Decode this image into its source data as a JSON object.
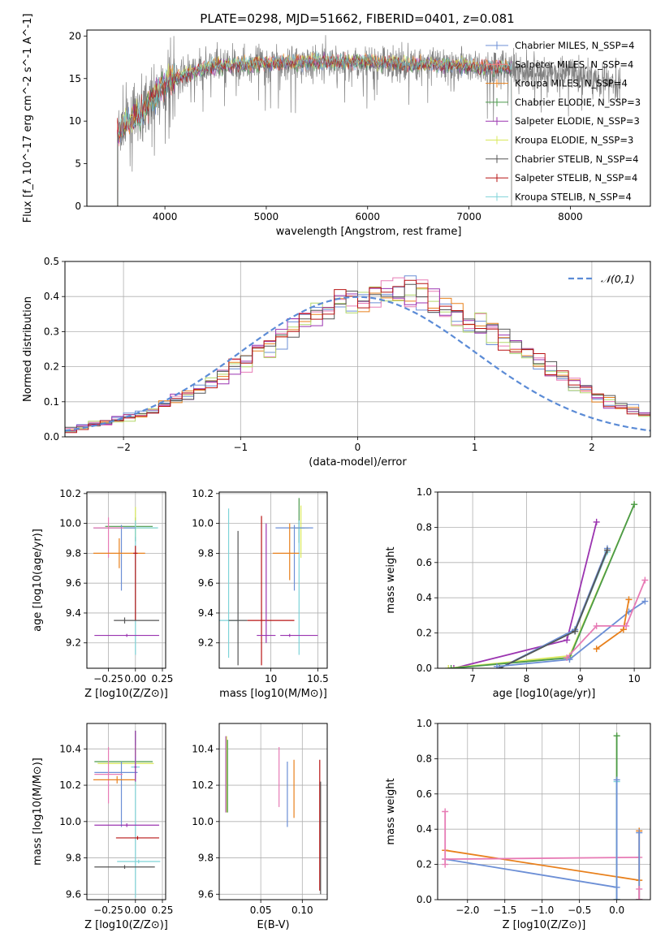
{
  "figure_title": "PLATE=0298, MJD=51662, FIBERID=0401, z=0.081",
  "colors": {
    "chabrier_miles": "#6c8fd6",
    "salpeter_miles": "#ff7b7b",
    "kroupa_miles": "#e8801c",
    "chabrier_elodie": "#4a9a4a",
    "salpeter_elodie": "#9b34b0",
    "kroupa_elodie": "#d8e85a",
    "chabrier_stelib": "#555555",
    "salpeter_stelib": "#b81414",
    "kroupa_stelib": "#7ed3d8",
    "pink": "#e77bb5",
    "gaussian": "#5b8bd6",
    "spectrum": "#808080"
  },
  "chart_data": [
    {
      "id": "spectrum",
      "type": "line",
      "title": "PLATE=0298, MJD=51662, FIBERID=0401, z=0.081",
      "xlabel": "wavelength [Angstrom, rest frame]",
      "ylabel": "Flux [f_λ 10^-17 erg cm^-2 s^-1 A^-1]",
      "xlim": [
        3230,
        8790
      ],
      "ylim": [
        0,
        20.7
      ],
      "xticks": [
        4000,
        5000,
        6000,
        7000,
        8000
      ],
      "yticks": [
        0,
        5,
        10,
        15,
        20
      ],
      "grid": false,
      "legend_position": "right",
      "legend": [
        {
          "name": "Chabrier MILES, N_SSP=4",
          "color": "#6c8fd6"
        },
        {
          "name": "Salpeter MILES, N_SSP=4",
          "color": "#ff7b7b"
        },
        {
          "name": "Kroupa MILES, N_SSP=4",
          "color": "#e8801c"
        },
        {
          "name": "Chabrier ELODIE, N_SSP=3",
          "color": "#4a9a4a"
        },
        {
          "name": "Salpeter ELODIE, N_SSP=3",
          "color": "#9b34b0"
        },
        {
          "name": "Kroupa ELODIE, N_SSP=3",
          "color": "#d8e85a"
        },
        {
          "name": "Chabrier STELIB, N_SSP=4",
          "color": "#555555"
        },
        {
          "name": "Salpeter STELIB, N_SSP=4",
          "color": "#b81414"
        },
        {
          "name": "Kroupa STELIB, N_SSP=4",
          "color": "#7ed3d8"
        }
      ],
      "data_envelope": {
        "x": [
          3530,
          3600,
          3700,
          3800,
          3900,
          4000,
          4200,
          4500,
          5000,
          5500,
          6000,
          6500,
          7000,
          7400,
          8000,
          8500
        ],
        "y": [
          8.5,
          9.5,
          10.5,
          11.5,
          13,
          14.5,
          15.5,
          16.5,
          16.8,
          17,
          16.9,
          16.7,
          16.5,
          16.2,
          15.5,
          14.5
        ]
      },
      "model_range": [
        3530,
        7420
      ]
    },
    {
      "id": "residual_hist",
      "type": "histogram",
      "xlabel": "(data-model)/error",
      "ylabel": "Normed distribution",
      "xlim": [
        -2.5,
        2.5
      ],
      "ylim": [
        0,
        0.5
      ],
      "xticks": [
        -2,
        -1,
        0,
        1,
        2
      ],
      "yticks": [
        0.0,
        0.1,
        0.2,
        0.3,
        0.4,
        0.5
      ],
      "grid": true,
      "legend_position": "top-right",
      "legend": [
        {
          "name": "𝒩(0,1)",
          "style": "dashed",
          "color": "#5b8bd6"
        }
      ],
      "bin_width": 0.1,
      "reference": [
        0.022,
        0.028,
        0.034,
        0.042,
        0.048,
        0.056,
        0.066,
        0.078,
        0.09,
        0.105,
        0.12,
        0.137,
        0.155,
        0.174,
        0.194,
        0.215,
        0.236,
        0.258,
        0.279,
        0.301,
        0.321,
        0.339,
        0.356,
        0.37,
        0.382,
        0.39,
        0.395,
        0.399,
        0.399,
        0.396,
        0.39,
        0.381,
        0.368,
        0.353,
        0.336,
        0.317,
        0.297,
        0.276,
        0.255,
        0.233,
        0.212,
        0.191,
        0.171,
        0.152,
        0.134,
        0.117,
        0.101,
        0.087,
        0.075,
        0.064
      ],
      "series_colors": [
        "#6c8fd6",
        "#e8801c",
        "#e77bb5",
        "#b3d86a",
        "#9b34b0",
        "#555555",
        "#b81414"
      ]
    },
    {
      "id": "age_vs_Z",
      "type": "errorbar",
      "xlabel": "Z [log10(Z/Z⊙)]",
      "ylabel": "age  [log10(age/yr)]",
      "xlim": [
        -0.45,
        0.28
      ],
      "ylim": [
        9.03,
        10.21
      ],
      "xticks": [
        -0.25,
        0.0,
        0.25
      ],
      "yticks": [
        9.2,
        9.4,
        9.6,
        9.8,
        10.0,
        10.2
      ],
      "grid": true,
      "points": [
        {
          "x": 0.0,
          "y": 9.98,
          "xerr": [
            0.28,
            0.16
          ],
          "yerr": [
            0.1,
            0.06
          ],
          "color": "#4a9a4a"
        },
        {
          "x": 0.0,
          "y": 9.97,
          "xerr": [
            0.38,
            0.2
          ],
          "yerr": [
            0.06,
            0.14
          ],
          "color": "#d8e85a"
        },
        {
          "x": 0.0,
          "y": 9.97,
          "xerr": [
            0.38,
            0.21
          ],
          "yerr": [
            0.85,
            0.05
          ],
          "color": "#7ed3d8"
        },
        {
          "x": -0.13,
          "y": 9.97,
          "xerr": [
            0.26,
            0.13
          ],
          "yerr": [
            0.42,
            0.02
          ],
          "color": "#6c8fd6"
        },
        {
          "x": -0.25,
          "y": 9.97,
          "xerr": [
            0.14,
            0.14
          ],
          "yerr": [
            0.2,
            0.07
          ],
          "color": "#e77bb5"
        },
        {
          "x": -0.15,
          "y": 9.8,
          "xerr": [
            0.24,
            0.24
          ],
          "yerr": [
            0.1,
            0.1
          ],
          "color": "#e8801c"
        },
        {
          "x": 0.0,
          "y": 9.8,
          "xerr": [
            0.02,
            0.02
          ],
          "yerr": [
            0.45,
            0.05
          ],
          "color": "#b81414"
        },
        {
          "x": -0.1,
          "y": 9.35,
          "xerr": [
            0.1,
            0.32
          ],
          "yerr": [
            0.02,
            0.02
          ],
          "color": "#555555"
        },
        {
          "x": -0.08,
          "y": 9.25,
          "xerr": [
            0.3,
            0.3
          ],
          "yerr": [
            0.01,
            0.01
          ],
          "color": "#9b34b0"
        }
      ]
    },
    {
      "id": "age_vs_mass",
      "type": "errorbar",
      "xlabel": "mass [log10(M/M⊙)]",
      "ylabel": "",
      "xlim": [
        9.45,
        10.6
      ],
      "ylim": [
        9.03,
        10.21
      ],
      "xticks": [
        10.0,
        10.5
      ],
      "yticks": [
        9.2,
        9.4,
        9.6,
        9.8,
        10.0,
        10.2
      ],
      "grid": true,
      "points": [
        {
          "x": 10.3,
          "y": 9.97,
          "xerr": [
            0.05,
            0.06
          ],
          "yerr": [
            0.1,
            0.2
          ],
          "color": "#4a9a4a"
        },
        {
          "x": 10.32,
          "y": 9.97,
          "xerr": [
            0.12,
            0.08
          ],
          "yerr": [
            0.2,
            0.15
          ],
          "color": "#d8e85a"
        },
        {
          "x": 10.3,
          "y": 9.97,
          "xerr": [
            0.05,
            0.05
          ],
          "yerr": [
            0.85,
            0.05
          ],
          "color": "#7ed3d8"
        },
        {
          "x": 10.25,
          "y": 9.97,
          "xerr": [
            0.2,
            0.2
          ],
          "yerr": [
            0.42,
            0.02
          ],
          "color": "#6c8fd6"
        },
        {
          "x": 10.2,
          "y": 9.8,
          "xerr": [
            0.18,
            0.1
          ],
          "yerr": [
            0.18,
            0.2
          ],
          "color": "#e8801c"
        },
        {
          "x": 9.55,
          "y": 9.35,
          "xerr": [
            0.1,
            0.12
          ],
          "yerr": [
            0.25,
            0.75
          ],
          "color": "#7ed3d8"
        },
        {
          "x": 9.65,
          "y": 9.35,
          "xerr": [
            0.1,
            0.1
          ],
          "yerr": [
            0.3,
            0.6
          ],
          "color": "#555555"
        },
        {
          "x": 9.9,
          "y": 9.35,
          "xerr": [
            0.15,
            0.35
          ],
          "yerr": [
            0.3,
            0.7
          ],
          "color": "#b81414"
        },
        {
          "x": 10.2,
          "y": 9.25,
          "xerr": [
            0.1,
            0.3
          ],
          "yerr": [
            0.01,
            0.01
          ],
          "color": "#9b34b0"
        },
        {
          "x": 9.95,
          "y": 9.25,
          "xerr": [
            0.1,
            0.1
          ],
          "yerr": [
            0.05,
            0.75
          ],
          "color": "#9b34b0"
        }
      ]
    },
    {
      "id": "weight_vs_age",
      "type": "line",
      "xlabel": "age  [log10(age/yr)]",
      "ylabel": "mass weight",
      "xlim": [
        6.35,
        10.3
      ],
      "ylim": [
        0,
        1.0
      ],
      "xticks": [
        7,
        8,
        9,
        10
      ],
      "yticks": [
        0.0,
        0.2,
        0.4,
        0.6,
        0.8,
        1.0
      ],
      "grid": true,
      "series": [
        {
          "color": "#9b34b0",
          "x": [
            6.65,
            8.75,
            9.3
          ],
          "y": [
            0.0,
            0.16,
            0.83
          ]
        },
        {
          "color": "#d8e85a",
          "x": [
            6.55,
            8.8,
            10.0
          ],
          "y": [
            0.0,
            0.07,
            0.93
          ]
        },
        {
          "color": "#4a9a4a",
          "x": [
            6.6,
            8.8,
            10.0
          ],
          "y": [
            0.0,
            0.06,
            0.93
          ]
        },
        {
          "color": "#7ed3d8",
          "x": [
            7.5,
            8.9,
            9.5
          ],
          "y": [
            0.0,
            0.21,
            0.66
          ]
        },
        {
          "color": "#6c8fd6",
          "x": [
            7.5,
            8.9,
            9.5
          ],
          "y": [
            0.0,
            0.22,
            0.68
          ]
        },
        {
          "color": "#555555",
          "x": [
            7.5,
            8.9,
            9.5
          ],
          "y": [
            0.0,
            0.21,
            0.67
          ]
        },
        {
          "color": "#6c8fd6",
          "x": [
            7.45,
            8.8,
            9.9,
            10.2
          ],
          "y": [
            0.01,
            0.05,
            0.32,
            0.38
          ]
        },
        {
          "color": "#e8801c",
          "x": [
            9.3,
            9.8,
            9.9
          ],
          "y": [
            0.11,
            0.22,
            0.39
          ]
        },
        {
          "color": "#e77bb5",
          "x": [
            8.75,
            9.3,
            9.85,
            10.2
          ],
          "y": [
            0.06,
            0.24,
            0.24,
            0.5
          ]
        }
      ]
    },
    {
      "id": "mass_vs_Z",
      "type": "errorbar",
      "xlabel": "Z [log10(Z/Z⊙)]",
      "ylabel": "mass [log10(M/M⊙)]",
      "xlim": [
        -0.45,
        0.28
      ],
      "ylim": [
        9.57,
        10.54
      ],
      "xticks": [
        -0.25,
        0.0,
        0.25
      ],
      "yticks": [
        9.6,
        9.8,
        10.0,
        10.2,
        10.4
      ],
      "grid": true,
      "points": [
        {
          "x": 0.0,
          "y": 10.33,
          "xerr": [
            0.38,
            0.16
          ],
          "yerr": [
            0.04,
            0.17
          ],
          "color": "#4a9a4a"
        },
        {
          "x": 0.0,
          "y": 10.32,
          "xerr": [
            0.35,
            0.17
          ],
          "yerr": [
            0.12,
            0.1
          ],
          "color": "#d8e85a"
        },
        {
          "x": 0.0,
          "y": 10.3,
          "xerr": [
            0.04,
            0.04
          ],
          "yerr": [
            0.72,
            0.06
          ],
          "color": "#7ed3d8"
        },
        {
          "x": -0.13,
          "y": 10.27,
          "xerr": [
            0.25,
            0.15
          ],
          "yerr": [
            0.3,
            0.06
          ],
          "color": "#6c8fd6"
        },
        {
          "x": -0.25,
          "y": 10.26,
          "xerr": [
            0.13,
            0.13
          ],
          "yerr": [
            0.16,
            0.15
          ],
          "color": "#e77bb5"
        },
        {
          "x": -0.17,
          "y": 10.23,
          "xerr": [
            0.22,
            0.17
          ],
          "yerr": [
            0.02,
            0.02
          ],
          "color": "#e8801c"
        },
        {
          "x": 0.0,
          "y": 10.3,
          "xerr": [
            0.01,
            0.01
          ],
          "yerr": [
            0.08,
            0.2
          ],
          "color": "#9b34b0"
        },
        {
          "x": -0.08,
          "y": 9.98,
          "xerr": [
            0.3,
            0.3
          ],
          "yerr": [
            0.01,
            0.01
          ],
          "color": "#9b34b0"
        },
        {
          "x": 0.02,
          "y": 9.91,
          "xerr": [
            0.2,
            0.2
          ],
          "yerr": [
            0.01,
            0.01
          ],
          "color": "#b81414"
        },
        {
          "x": 0.03,
          "y": 9.78,
          "xerr": [
            0.2,
            0.2
          ],
          "yerr": [
            0.01,
            0.01
          ],
          "color": "#7ed3d8"
        },
        {
          "x": -0.1,
          "y": 9.75,
          "xerr": [
            0.28,
            0.28
          ],
          "yerr": [
            0.01,
            0.01
          ],
          "color": "#555555"
        }
      ]
    },
    {
      "id": "mass_vs_ebv",
      "type": "errorbar",
      "xlabel": "E(B-V)",
      "ylabel": "",
      "xlim": [
        0.0,
        0.13
      ],
      "ylim": [
        9.57,
        10.54
      ],
      "xticks": [
        0.05,
        0.1
      ],
      "yticks": [
        9.6,
        9.8,
        10.0,
        10.2,
        10.4
      ],
      "grid": true,
      "points": [
        {
          "x": 0.008,
          "y": 10.25,
          "xerr": [
            0,
            0
          ],
          "yerr": [
            0.2,
            0.22
          ],
          "color": "#9b34b0"
        },
        {
          "x": 0.009,
          "y": 10.25,
          "xerr": [
            0,
            0
          ],
          "yerr": [
            0.2,
            0.22
          ],
          "color": "#d8e85a"
        },
        {
          "x": 0.01,
          "y": 10.25,
          "xerr": [
            0,
            0
          ],
          "yerr": [
            0.2,
            0.2
          ],
          "color": "#4a9a4a"
        },
        {
          "x": 0.072,
          "y": 10.25,
          "xerr": [
            0,
            0
          ],
          "yerr": [
            0.17,
            0.16
          ],
          "color": "#e77bb5"
        },
        {
          "x": 0.082,
          "y": 10.15,
          "xerr": [
            0,
            0
          ],
          "yerr": [
            0.18,
            0.18
          ],
          "color": "#6c8fd6"
        },
        {
          "x": 0.09,
          "y": 10.18,
          "xerr": [
            0,
            0
          ],
          "yerr": [
            0.16,
            0.16
          ],
          "color": "#e8801c"
        },
        {
          "x": 0.121,
          "y": 9.98,
          "xerr": [
            0,
            0
          ],
          "yerr": [
            0.36,
            0.36
          ],
          "color": "#b81414"
        },
        {
          "x": 0.122,
          "y": 9.9,
          "xerr": [
            0,
            0
          ],
          "yerr": [
            0.3,
            0.32
          ],
          "color": "#555555"
        }
      ]
    },
    {
      "id": "weight_vs_Z",
      "type": "line",
      "xlabel": "Z [log10(Z/Z⊙)]",
      "ylabel": "mass weight",
      "xlim": [
        -2.4,
        0.45
      ],
      "ylim": [
        0,
        1.0
      ],
      "xticks": [
        -2.0,
        -1.5,
        -1.0,
        -0.5,
        0.0
      ],
      "yticks": [
        0.0,
        0.2,
        0.4,
        0.6,
        0.8,
        1.0
      ],
      "grid": true,
      "series": [
        {
          "color": "#6c8fd6",
          "x": [
            -2.3,
            0.0
          ],
          "y": [
            0.23,
            0.07
          ]
        },
        {
          "color": "#e8801c",
          "x": [
            -2.3,
            0.3
          ],
          "y": [
            0.28,
            0.11
          ]
        },
        {
          "color": "#e77bb5",
          "x": [
            -2.3,
            0.3
          ],
          "y": [
            0.23,
            0.24
          ]
        },
        {
          "color": "#d8e85a",
          "x": [
            0.0,
            0.0
          ],
          "y": [
            0.0,
            0.93
          ]
        },
        {
          "color": "#4a9a4a",
          "x": [
            0.0,
            0.0
          ],
          "y": [
            0.0,
            0.93
          ]
        },
        {
          "color": "#7ed3d8",
          "x": [
            0.0,
            0.0
          ],
          "y": [
            0.0,
            0.67
          ]
        },
        {
          "color": "#6c8fd6",
          "x": [
            0.0,
            0.0
          ],
          "y": [
            0.0,
            0.68
          ]
        },
        {
          "color": "#e8801c",
          "x": [
            0.3,
            0.3
          ],
          "y": [
            0.0,
            0.39
          ]
        },
        {
          "color": "#6c8fd6",
          "x": [
            0.3,
            0.3
          ],
          "y": [
            0.0,
            0.38
          ]
        },
        {
          "color": "#e77bb5",
          "x": [
            -2.3,
            -2.3
          ],
          "y": [
            0.2,
            0.5
          ]
        },
        {
          "color": "#e77bb5",
          "x": [
            0.3,
            0.3
          ],
          "y": [
            0.0,
            0.06
          ]
        }
      ]
    }
  ]
}
